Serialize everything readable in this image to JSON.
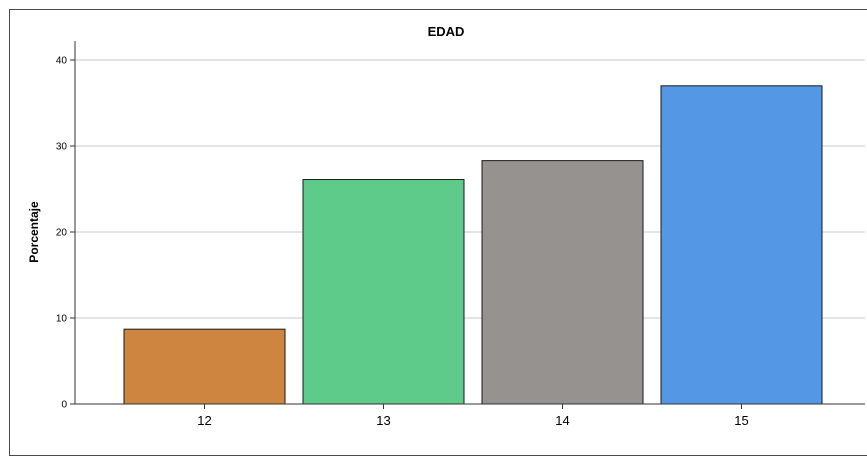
{
  "chart_data": {
    "type": "bar",
    "title": "EDAD",
    "xlabel": "",
    "ylabel": "Porcentaje",
    "categories": [
      "12",
      "13",
      "14",
      "15"
    ],
    "values": [
      8.7,
      26.1,
      28.3,
      37.0
    ],
    "ylim": [
      0,
      40
    ],
    "yticks": [
      "0",
      "10",
      "20",
      "30",
      "40"
    ],
    "grid": true,
    "colors": [
      "#cd853f",
      "#5ecb8a",
      "#959290",
      "#5497e5"
    ]
  }
}
